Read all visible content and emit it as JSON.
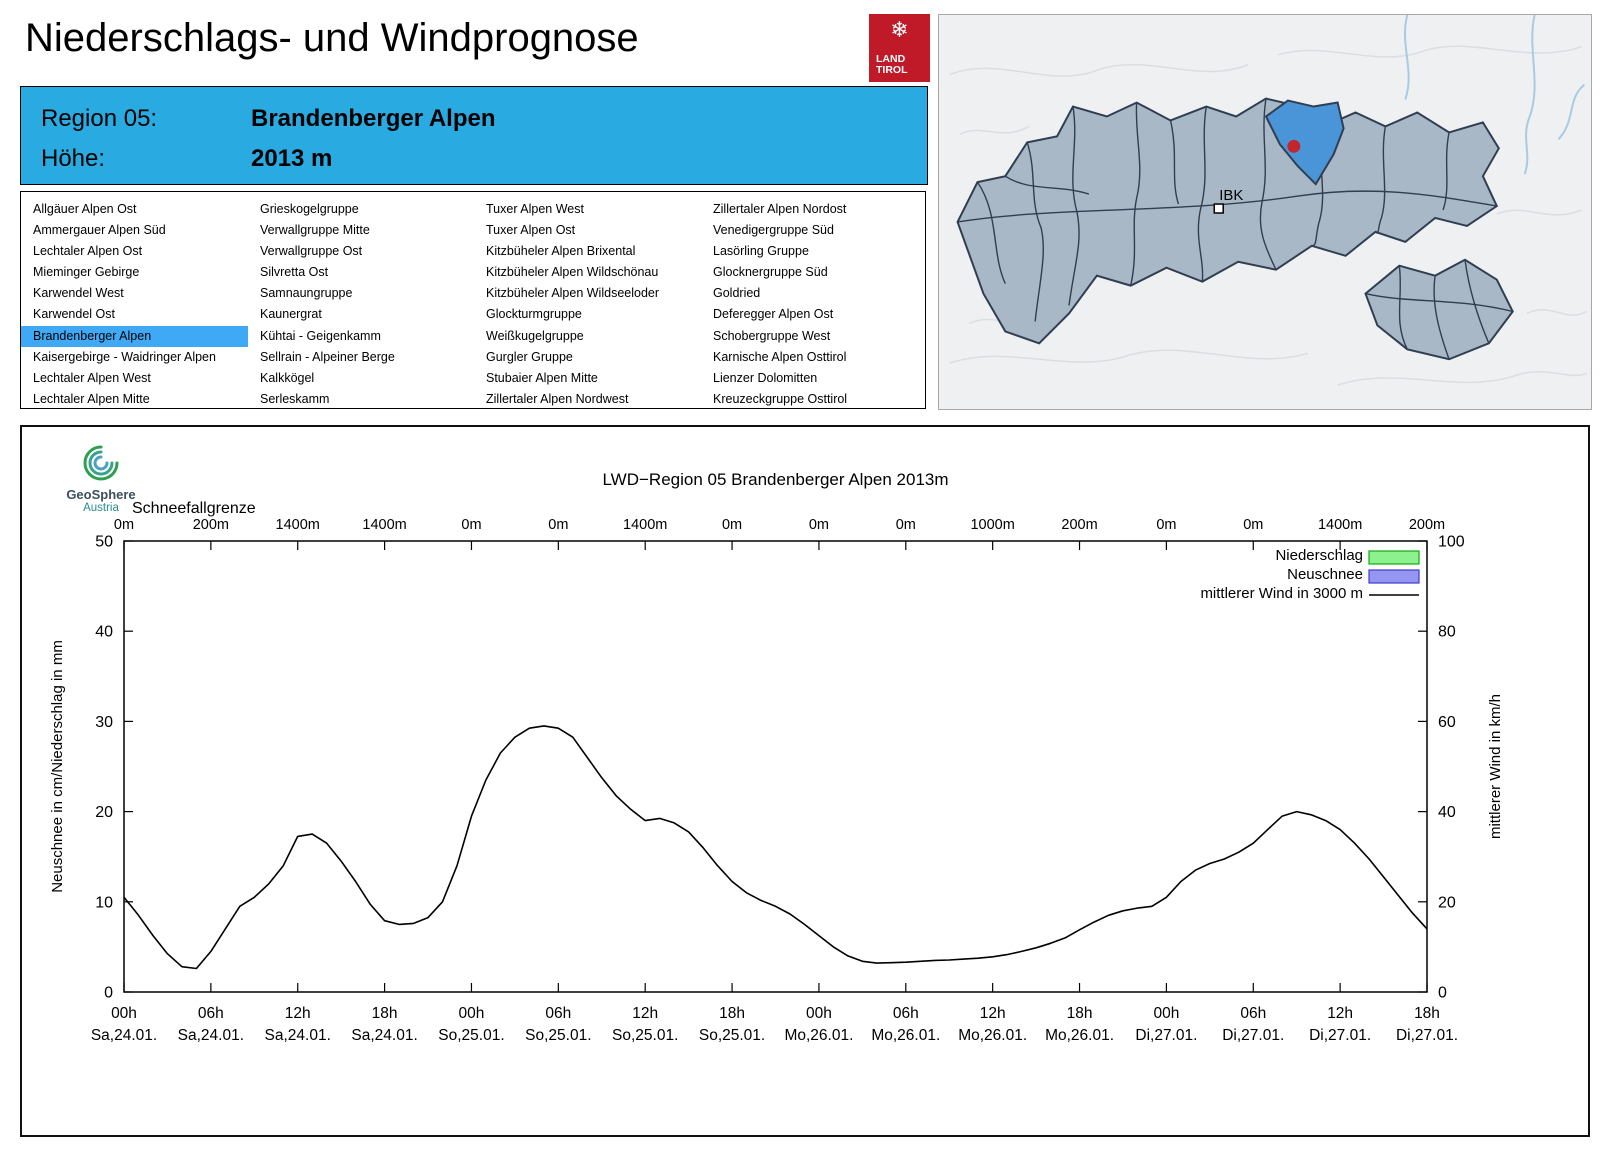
{
  "page": {
    "title": "Niederschlags- und Windprognose"
  },
  "land_tirol_logo": {
    "snowflake": "❄",
    "line1": "LAND",
    "line2": "TIROL",
    "color": "#c01a28"
  },
  "region_header": {
    "region_label": "Region 05:",
    "region_value": "Brandenberger Alpen",
    "altitude_label": "Höhe:",
    "altitude_value": "2013 m",
    "bg_color": "#29abe2"
  },
  "region_list": {
    "selected": "Brandenberger Alpen",
    "highlight_color": "#3fa9f5",
    "columns": [
      [
        "Allgäuer Alpen Ost",
        "Ammergauer Alpen Süd",
        "Lechtaler Alpen Ost",
        "Mieminger Gebirge",
        "Karwendel West",
        "Karwendel Ost",
        "Brandenberger Alpen",
        "Kaisergebirge - Waidringer Alpen",
        "Lechtaler Alpen West",
        "Lechtaler Alpen Mitte"
      ],
      [
        "Grieskogelgruppe",
        "Verwallgruppe Mitte",
        "Verwallgruppe Ost",
        "Silvretta Ost",
        "Samnaungruppe",
        "Kaunergrat",
        "Kühtai - Geigenkamm",
        "Sellrain - Alpeiner Berge",
        "Kalkkögel",
        "Serleskamm"
      ],
      [
        "Tuxer Alpen West",
        "Tuxer Alpen Ost",
        "Kitzbüheler Alpen Brixental",
        "Kitzbüheler Alpen Wildschönau",
        "Kitzbüheler Alpen Wildseeloder",
        "Glockturmgruppe",
        "Weißkugelgruppe",
        "Gurgler Gruppe",
        "Stubaier Alpen Mitte",
        "Zillertaler Alpen Nordwest"
      ],
      [
        "Zillertaler Alpen Nordost",
        "Venedigergruppe Süd",
        "Lasörling Gruppe",
        "Glocknergruppe Süd",
        "Goldried",
        "Deferegger Alpen Ost",
        "Schobergruppe West",
        "Karnische Alpen Osttirol",
        "Lienzer Dolomitten",
        "Kreuzeckgruppe Osttirol"
      ]
    ]
  },
  "map": {
    "ibk_label": "IBK",
    "highlight_color": "#4a94d8",
    "marker_color": "#c0262c"
  },
  "geosphere_logo": {
    "line1": "GeoSphere",
    "line2": "Austria"
  },
  "chart_data": {
    "type": "line",
    "title": "LWD−Region 05 Brandenberger Alpen 2013m",
    "top_axis": {
      "label": "Schneefallgrenze",
      "values": [
        "0m",
        "200m",
        "1400m",
        "1400m",
        "0m",
        "0m",
        "1400m",
        "0m",
        "0m",
        "0m",
        "1000m",
        "200m",
        "0m",
        "0m",
        "1400m",
        "200m"
      ]
    },
    "ylabel_left": "Neuschnee in cm/Niederschlag in mm",
    "ylabel_right": "mittlerer Wind in km/h",
    "ylim_left": [
      0,
      50
    ],
    "ylim_right": [
      0,
      100
    ],
    "yticks_left": [
      0,
      10,
      20,
      30,
      40,
      50
    ],
    "yticks_right": [
      0,
      20,
      40,
      60,
      80,
      100
    ],
    "x_tick_hours": [
      0,
      6,
      12,
      18,
      24,
      30,
      36,
      42,
      48,
      54,
      60,
      66,
      72,
      78,
      84,
      90
    ],
    "x_tick_times": [
      "00h",
      "06h",
      "12h",
      "18h",
      "00h",
      "06h",
      "12h",
      "18h",
      "00h",
      "06h",
      "12h",
      "18h",
      "00h",
      "06h",
      "12h",
      "18h"
    ],
    "x_tick_dates": [
      "Sa,24.01.",
      "Sa,24.01.",
      "Sa,24.01.",
      "Sa,24.01.",
      "So,25.01.",
      "So,25.01.",
      "So,25.01.",
      "So,25.01.",
      "Mo,26.01.",
      "Mo,26.01.",
      "Mo,26.01.",
      "Mo,26.01.",
      "Di,27.01.",
      "Di,27.01.",
      "Di,27.01.",
      "Di,27.01."
    ],
    "legend": [
      {
        "label": "Niederschlag",
        "swatch": "box",
        "fill": "#8df28d",
        "border": "#11aa11"
      },
      {
        "label": "Neuschnee",
        "swatch": "box",
        "fill": "#9595f2",
        "border": "#3c3cd0"
      },
      {
        "label": "mittlerer Wind in 3000 m",
        "swatch": "line",
        "color": "#000000"
      }
    ],
    "series": [
      {
        "name": "mittlerer Wind in 3000 m",
        "axis": "right",
        "unit": "km/h",
        "x": [
          0,
          1,
          2,
          3,
          4,
          5,
          6,
          7,
          8,
          9,
          10,
          11,
          12,
          13,
          14,
          15,
          16,
          17,
          18,
          19,
          20,
          21,
          22,
          23,
          24,
          25,
          26,
          27,
          28,
          29,
          30,
          31,
          32,
          33,
          34,
          35,
          36,
          37,
          38,
          39,
          40,
          41,
          42,
          43,
          44,
          45,
          46,
          47,
          48,
          49,
          50,
          51,
          52,
          53,
          54,
          55,
          56,
          57,
          58,
          59,
          60,
          61,
          62,
          63,
          64,
          65,
          66,
          67,
          68,
          69,
          70,
          71,
          72,
          73,
          74,
          75,
          76,
          77,
          78,
          79,
          80,
          81,
          82,
          83,
          84,
          85,
          86,
          87,
          88,
          89,
          90
        ],
        "y": [
          21,
          17,
          12.5,
          8.5,
          5.6,
          5.2,
          9,
          14,
          19,
          21,
          24,
          28,
          34.5,
          35,
          33,
          29,
          24.5,
          19.5,
          15.8,
          15,
          15.2,
          16.5,
          20,
          28,
          39,
          47,
          53,
          56.5,
          58.5,
          59,
          58.5,
          56.5,
          52,
          47.5,
          43.5,
          40.5,
          38,
          38.5,
          37.5,
          35.5,
          32,
          28,
          24.5,
          22,
          20.3,
          19,
          17.3,
          15,
          12.5,
          10,
          8,
          6.8,
          6.4,
          6.5,
          6.6,
          6.8,
          7,
          7.1,
          7.3,
          7.5,
          7.8,
          8.3,
          9,
          9.8,
          10.8,
          12,
          13.8,
          15.5,
          17,
          18,
          18.6,
          19,
          21,
          24.5,
          27,
          28.5,
          29.5,
          31,
          33,
          36,
          39,
          40,
          39.3,
          38,
          36,
          33,
          29.5,
          25.5,
          21.5,
          17.5,
          14
        ]
      }
    ]
  }
}
